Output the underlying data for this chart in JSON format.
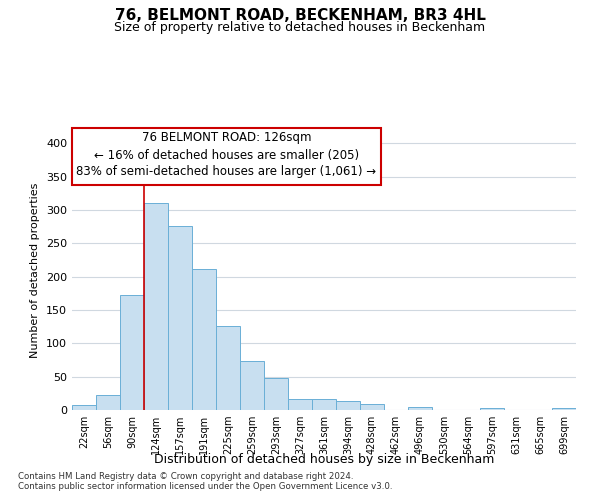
{
  "title": "76, BELMONT ROAD, BECKENHAM, BR3 4HL",
  "subtitle": "Size of property relative to detached houses in Beckenham",
  "xlabel": "Distribution of detached houses by size in Beckenham",
  "ylabel": "Number of detached properties",
  "footnote1": "Contains HM Land Registry data © Crown copyright and database right 2024.",
  "footnote2": "Contains public sector information licensed under the Open Government Licence v3.0.",
  "bin_labels": [
    "22sqm",
    "56sqm",
    "90sqm",
    "124sqm",
    "157sqm",
    "191sqm",
    "225sqm",
    "259sqm",
    "293sqm",
    "327sqm",
    "361sqm",
    "394sqm",
    "428sqm",
    "462sqm",
    "496sqm",
    "530sqm",
    "564sqm",
    "597sqm",
    "631sqm",
    "665sqm",
    "699sqm"
  ],
  "bar_values": [
    8,
    22,
    173,
    311,
    276,
    211,
    126,
    74,
    48,
    16,
    16,
    14,
    9,
    0,
    4,
    0,
    0,
    3,
    0,
    0,
    3
  ],
  "bar_color": "#c8dff0",
  "bar_edge_color": "#6aafd6",
  "vline_index": 3,
  "vline_color": "#cc0000",
  "annotation_title": "76 BELMONT ROAD: 126sqm",
  "annotation_line1": "← 16% of detached houses are smaller (205)",
  "annotation_line2": "83% of semi-detached houses are larger (1,061) →",
  "box_edge_color": "#cc0000",
  "ylim": [
    0,
    420
  ],
  "yticks": [
    0,
    50,
    100,
    150,
    200,
    250,
    300,
    350,
    400
  ],
  "background_color": "#ffffff",
  "grid_color": "#d0d8e0",
  "figwidth": 6.0,
  "figheight": 5.0,
  "dpi": 100
}
